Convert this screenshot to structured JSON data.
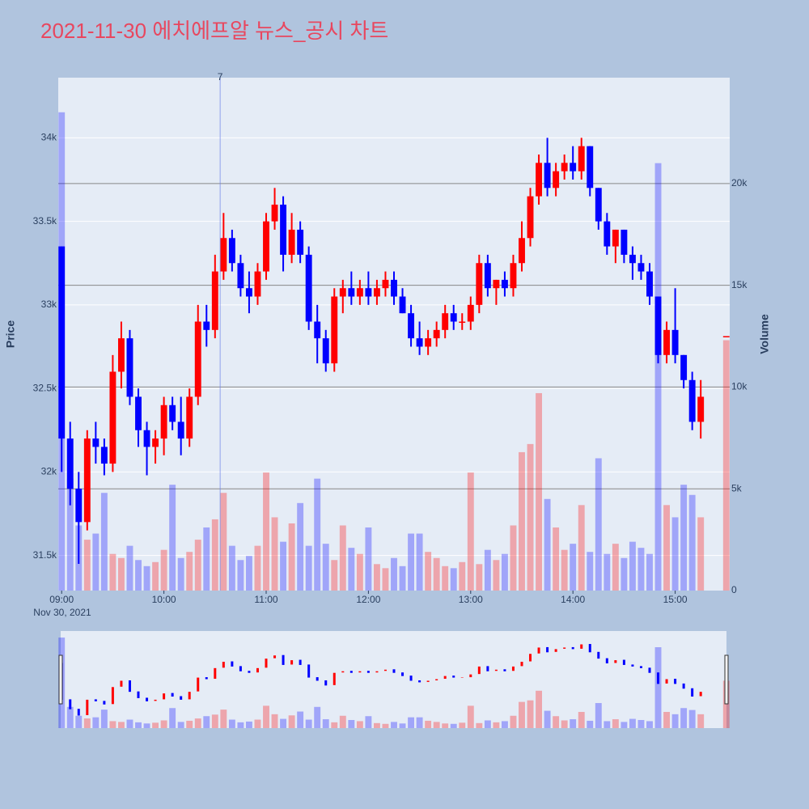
{
  "chart_data": {
    "type": "candlestick",
    "title": "2021-11-30 에치에프알 뉴스_공시 차트",
    "date_label": "Nov 30, 2021",
    "y_label": "Price",
    "y2_label": "Volume",
    "up_color": "#ff0000",
    "down_color": "#0000ff",
    "x": [
      "09:00",
      "09:05",
      "09:10",
      "09:15",
      "09:20",
      "09:25",
      "09:30",
      "09:35",
      "09:40",
      "09:45",
      "09:50",
      "09:55",
      "10:00",
      "10:05",
      "10:10",
      "10:15",
      "10:20",
      "10:25",
      "10:30",
      "10:35",
      "10:40",
      "10:45",
      "10:50",
      "10:55",
      "11:00",
      "11:05",
      "11:10",
      "11:15",
      "11:20",
      "11:25",
      "11:30",
      "11:35",
      "11:40",
      "11:45",
      "11:50",
      "11:55",
      "12:00",
      "12:05",
      "12:10",
      "12:15",
      "12:20",
      "12:25",
      "12:30",
      "12:35",
      "12:40",
      "12:45",
      "12:50",
      "12:55",
      "13:00",
      "13:05",
      "13:10",
      "13:15",
      "13:20",
      "13:25",
      "13:30",
      "13:35",
      "13:40",
      "13:45",
      "13:50",
      "13:55",
      "14:00",
      "14:05",
      "14:10",
      "14:15",
      "14:20",
      "14:25",
      "14:30",
      "14:35",
      "14:40",
      "14:45",
      "14:50",
      "14:55",
      "15:00",
      "15:05",
      "15:10",
      "15:15",
      "15:30"
    ],
    "open": [
      33350,
      32200,
      31900,
      31700,
      32200,
      32150,
      32050,
      32600,
      32800,
      32450,
      32250,
      32150,
      32200,
      32400,
      32300,
      32200,
      32450,
      32900,
      32850,
      33200,
      33400,
      33250,
      33100,
      33050,
      33200,
      33500,
      33600,
      33300,
      33450,
      33300,
      32900,
      32800,
      32650,
      33050,
      33100,
      33050,
      33100,
      33050,
      33100,
      33150,
      33050,
      32950,
      32800,
      32750,
      32800,
      32850,
      32950,
      32900,
      32900,
      33000,
      33250,
      33100,
      33150,
      33100,
      33250,
      33400,
      33650,
      33850,
      33700,
      33800,
      33850,
      33800,
      33950,
      33700,
      33500,
      33350,
      33450,
      33300,
      33250,
      33200,
      33050,
      32700,
      32850,
      32700,
      32550,
      32300,
      32813
    ],
    "high": [
      33350,
      32300,
      32000,
      32250,
      32300,
      32200,
      32700,
      32900,
      32850,
      32500,
      32300,
      32250,
      32450,
      32450,
      32450,
      32500,
      33000,
      33000,
      33300,
      33550,
      33450,
      33300,
      33200,
      33250,
      33550,
      33700,
      33650,
      33550,
      33500,
      33350,
      33000,
      32850,
      33100,
      33150,
      33200,
      33150,
      33200,
      33150,
      33200,
      33200,
      33100,
      33000,
      32900,
      32850,
      32900,
      33000,
      33000,
      32950,
      33050,
      33300,
      33300,
      33150,
      33200,
      33300,
      33500,
      33700,
      33900,
      34000,
      33850,
      33900,
      33950,
      34000,
      33950,
      33700,
      33550,
      33450,
      33450,
      33350,
      33300,
      33250,
      33050,
      32900,
      33100,
      32700,
      32600,
      32550,
      32813
    ],
    "low": [
      32000,
      31800,
      31450,
      31650,
      32050,
      31980,
      32000,
      32500,
      32400,
      32150,
      31980,
      32050,
      32100,
      32250,
      32100,
      32150,
      32400,
      32750,
      32800,
      33150,
      33200,
      33050,
      32950,
      33000,
      33150,
      33450,
      33200,
      33250,
      33250,
      32850,
      32650,
      32600,
      32600,
      32950,
      33000,
      33000,
      33000,
      33000,
      33050,
      33000,
      32950,
      32750,
      32700,
      32700,
      32750,
      32800,
      32850,
      32850,
      32850,
      32950,
      33050,
      33000,
      33050,
      33050,
      33200,
      33350,
      33600,
      33650,
      33650,
      33750,
      33750,
      33750,
      33650,
      33450,
      33300,
      33250,
      33250,
      33150,
      33150,
      33000,
      32650,
      32650,
      32650,
      32500,
      32250,
      32200,
      32813
    ],
    "close": [
      32200,
      31900,
      31700,
      32200,
      32150,
      32050,
      32600,
      32800,
      32450,
      32250,
      32150,
      32200,
      32400,
      32300,
      32200,
      32450,
      32900,
      32850,
      33200,
      33400,
      33250,
      33100,
      33050,
      33200,
      33500,
      33600,
      33300,
      33450,
      33300,
      32900,
      32800,
      32650,
      33050,
      33100,
      33050,
      33100,
      33050,
      33100,
      33150,
      33050,
      32950,
      32800,
      32750,
      32800,
      32850,
      32950,
      32900,
      32900,
      33000,
      33250,
      33100,
      33150,
      33100,
      33250,
      33400,
      33650,
      33850,
      33700,
      33800,
      33850,
      33800,
      33950,
      33700,
      33500,
      33350,
      33450,
      33300,
      33250,
      33200,
      33050,
      32700,
      32850,
      32700,
      32550,
      32300,
      32450,
      32813
    ],
    "volume": [
      23500,
      5500,
      3200,
      2500,
      2800,
      4800,
      1800,
      1600,
      2200,
      1500,
      1200,
      1400,
      2000,
      5200,
      1600,
      1900,
      2500,
      3100,
      3500,
      4800,
      2200,
      1500,
      1700,
      2200,
      5800,
      3600,
      2400,
      3300,
      4300,
      2200,
      5500,
      2300,
      1500,
      3200,
      2100,
      1800,
      3100,
      1300,
      1100,
      1600,
      1200,
      2800,
      2800,
      1900,
      1600,
      1200,
      1100,
      1400,
      5800,
      1300,
      2000,
      1500,
      1800,
      3200,
      6800,
      7200,
      9700,
      4500,
      3100,
      2000,
      2300,
      4200,
      1900,
      6500,
      1800,
      2300,
      1600,
      2400,
      2100,
      1800,
      21000,
      4200,
      3600,
      5200,
      4700,
      3600,
      12300
    ],
    "xlim": [
      "08:58",
      "15:32"
    ],
    "xticks": [
      "09:00",
      "10:00",
      "11:00",
      "12:00",
      "13:00",
      "14:00",
      "15:00"
    ],
    "ylim": [
      31290,
      34360
    ],
    "yticks": [
      {
        "value": 31500,
        "label": "31.5k"
      },
      {
        "value": 32000,
        "label": "32k"
      },
      {
        "value": 32500,
        "label": "32.5k"
      },
      {
        "value": 33000,
        "label": "33k"
      },
      {
        "value": 33500,
        "label": "33.5k"
      },
      {
        "value": 34000,
        "label": "34k"
      }
    ],
    "y2lim": [
      0,
      25200
    ],
    "y2ticks": [
      0,
      {
        "value": 5000,
        "label": "5k"
      },
      {
        "value": 10000,
        "label": "10k"
      },
      {
        "value": 15000,
        "label": "15k"
      },
      {
        "value": 20000,
        "label": "20k"
      }
    ],
    "annotations": [
      {
        "x": "10:33",
        "text": "7"
      }
    ]
  }
}
